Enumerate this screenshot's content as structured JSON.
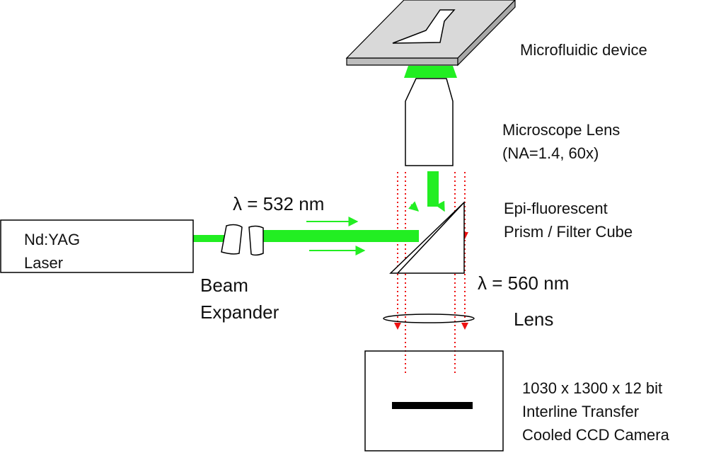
{
  "colors": {
    "laser_green": "#22ee22",
    "emission_red": "#ee1111",
    "outline": "#000000",
    "stage_gray": "#cccccc"
  },
  "labels": {
    "microfluidic_device": "Microfluidic device",
    "microscope_lens": [
      "Microscope Lens",
      "(NA=1.4, 60x)"
    ],
    "epi_cube": [
      "Epi-fluorescent",
      "Prism / Filter Cube"
    ],
    "laser": [
      "Nd:YAG",
      "Laser"
    ],
    "beam_expander": [
      "Beam",
      "Expander"
    ],
    "excitation_wavelength": "λ = 532 nm",
    "emission_wavelength": "λ = 560 nm",
    "lens": "Lens",
    "camera": [
      "1030 x 1300 x 12 bit",
      "Interline Transfer",
      "Cooled CCD Camera"
    ]
  },
  "icons": [
    "microfluidic-device-icon",
    "objective-lens-icon",
    "prism-icon",
    "beam-expander-icon",
    "laser-box-icon",
    "focusing-lens-icon",
    "ccd-camera-icon"
  ]
}
